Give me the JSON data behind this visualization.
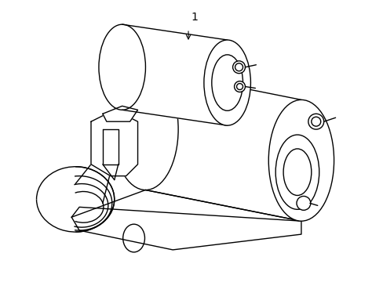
{
  "background_color": "#ffffff",
  "line_color": "#000000",
  "label_text": "1",
  "fig_width": 4.89,
  "fig_height": 3.6,
  "dpi": 100,
  "lw": 1.0
}
